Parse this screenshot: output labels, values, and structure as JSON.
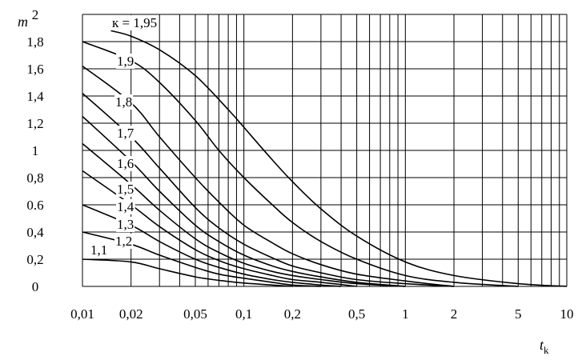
{
  "chart_data": {
    "type": "line",
    "title": "",
    "xlabel": "t",
    "xlabel_subscript": "k",
    "ylabel": "m",
    "x_scale": "log",
    "xlim": [
      0.01,
      10
    ],
    "ylim": [
      0,
      2
    ],
    "grid": true,
    "x_ticks": [
      {
        "value": 0.01,
        "label": "0,01"
      },
      {
        "value": 0.02,
        "label": "0,02"
      },
      {
        "value": 0.05,
        "label": "0,05"
      },
      {
        "value": 0.1,
        "label": "0,1"
      },
      {
        "value": 0.2,
        "label": "0,2"
      },
      {
        "value": 0.5,
        "label": "0,5"
      },
      {
        "value": 1,
        "label": "1"
      },
      {
        "value": 2,
        "label": "2"
      },
      {
        "value": 5,
        "label": "5"
      },
      {
        "value": 10,
        "label": "10"
      }
    ],
    "y_ticks": [
      {
        "value": 0,
        "label": "0"
      },
      {
        "value": 0.2,
        "label": "0,2"
      },
      {
        "value": 0.4,
        "label": "0,4"
      },
      {
        "value": 0.6,
        "label": "0.6"
      },
      {
        "value": 0.8,
        "label": "0,8"
      },
      {
        "value": 1,
        "label": "1"
      },
      {
        "value": 1.2,
        "label": "1,2"
      },
      {
        "value": 1.4,
        "label": "1,4"
      },
      {
        "value": 1.6,
        "label": "1,6"
      },
      {
        "value": 1.8,
        "label": "1,8"
      },
      {
        "value": 2,
        "label": "2"
      }
    ],
    "series": [
      {
        "name": "к = 1,95",
        "label": "к = 1,95",
        "x": [
          0.015,
          0.02,
          0.03,
          0.05,
          0.08,
          0.1,
          0.15,
          0.2,
          0.3,
          0.5,
          1,
          2,
          5,
          10
        ],
        "y": [
          1.88,
          1.84,
          1.74,
          1.55,
          1.3,
          1.17,
          0.93,
          0.77,
          0.57,
          0.37,
          0.18,
          0.08,
          0.02,
          0
        ]
      },
      {
        "name": "1,9",
        "label": "1,9",
        "x": [
          0.01,
          0.02,
          0.03,
          0.05,
          0.07,
          0.1,
          0.15,
          0.2,
          0.3,
          0.5,
          1,
          2,
          5
        ],
        "y": [
          1.8,
          1.66,
          1.5,
          1.22,
          1.0,
          0.8,
          0.6,
          0.47,
          0.33,
          0.2,
          0.08,
          0.03,
          0
        ]
      },
      {
        "name": "1,8",
        "label": "1,8",
        "x": [
          0.01,
          0.02,
          0.03,
          0.05,
          0.07,
          0.1,
          0.15,
          0.2,
          0.3,
          0.5,
          1,
          2
        ],
        "y": [
          1.62,
          1.35,
          1.1,
          0.8,
          0.62,
          0.45,
          0.32,
          0.24,
          0.16,
          0.09,
          0.04,
          0
        ]
      },
      {
        "name": "1,7",
        "label": "1,7",
        "x": [
          0.01,
          0.02,
          0.03,
          0.05,
          0.07,
          0.1,
          0.15,
          0.2,
          0.3,
          0.5,
          1,
          2
        ],
        "y": [
          1.42,
          1.1,
          0.87,
          0.58,
          0.43,
          0.31,
          0.21,
          0.15,
          0.1,
          0.05,
          0.02,
          0
        ]
      },
      {
        "name": "1,6",
        "label": "1,6",
        "x": [
          0.01,
          0.02,
          0.03,
          0.05,
          0.07,
          0.1,
          0.15,
          0.2,
          0.3,
          0.5,
          1
        ],
        "y": [
          1.25,
          0.92,
          0.7,
          0.45,
          0.33,
          0.23,
          0.15,
          0.11,
          0.07,
          0.03,
          0
        ]
      },
      {
        "name": "1,5",
        "label": "1,5",
        "x": [
          0.01,
          0.02,
          0.03,
          0.05,
          0.07,
          0.1,
          0.15,
          0.2,
          0.3,
          0.5,
          1
        ],
        "y": [
          1.05,
          0.75,
          0.56,
          0.35,
          0.25,
          0.17,
          0.11,
          0.08,
          0.05,
          0.02,
          0
        ]
      },
      {
        "name": "1,4",
        "label": "1,4",
        "x": [
          0.01,
          0.02,
          0.03,
          0.05,
          0.07,
          0.1,
          0.15,
          0.2,
          0.3,
          0.5
        ],
        "y": [
          0.85,
          0.6,
          0.44,
          0.27,
          0.19,
          0.13,
          0.08,
          0.05,
          0.03,
          0
        ]
      },
      {
        "name": "1,3",
        "label": "1,3",
        "x": [
          0.01,
          0.02,
          0.03,
          0.05,
          0.07,
          0.1,
          0.15,
          0.2,
          0.3,
          0.4
        ],
        "y": [
          0.6,
          0.45,
          0.33,
          0.2,
          0.14,
          0.09,
          0.05,
          0.03,
          0.01,
          0
        ]
      },
      {
        "name": "1,2",
        "label": "1,2",
        "x": [
          0.01,
          0.02,
          0.03,
          0.05,
          0.07,
          0.1,
          0.15,
          0.2,
          0.3
        ],
        "y": [
          0.4,
          0.31,
          0.23,
          0.14,
          0.09,
          0.06,
          0.03,
          0.01,
          0
        ]
      },
      {
        "name": "1,1",
        "label": "1,1",
        "x": [
          0.01,
          0.02,
          0.03,
          0.05,
          0.07,
          0.1,
          0.15,
          0.2
        ],
        "y": [
          0.2,
          0.18,
          0.13,
          0.07,
          0.045,
          0.025,
          0.01,
          0
        ]
      }
    ]
  }
}
